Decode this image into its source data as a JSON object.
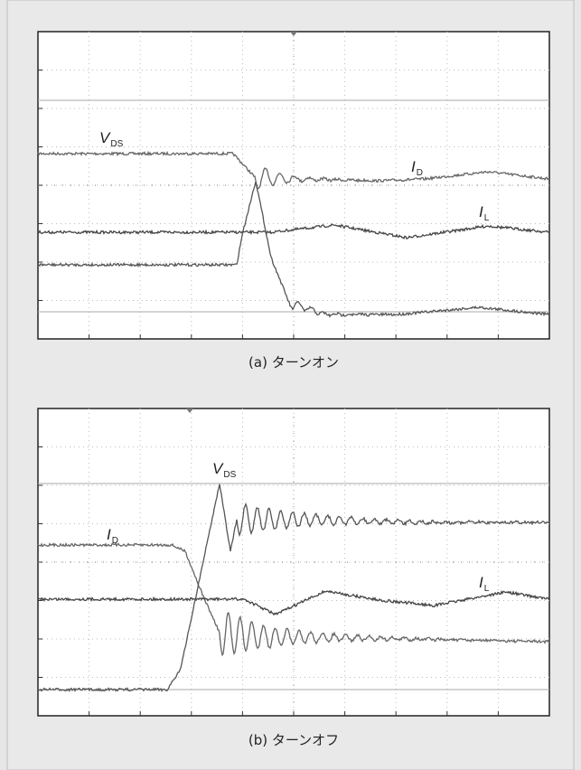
{
  "panels": [
    {
      "caption": "(a) ターンオン",
      "labels": [
        {
          "symbol": "V",
          "subscript": "DS"
        },
        {
          "symbol": "I",
          "subscript": "D"
        },
        {
          "symbol": "I",
          "subscript": "L"
        }
      ]
    },
    {
      "caption": "(b) ターンオフ",
      "labels": [
        {
          "symbol": "V",
          "subscript": "DS"
        },
        {
          "symbol": "I",
          "subscript": "D"
        },
        {
          "symbol": "I",
          "subscript": "L"
        }
      ]
    }
  ]
}
